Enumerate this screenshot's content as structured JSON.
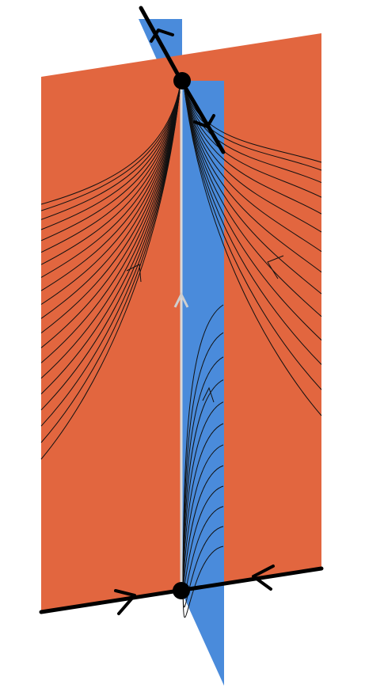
{
  "diagram": {
    "description_visible_text": [],
    "colors": {
      "orange_plane": "#E2663F",
      "blue_plane": "#4A8BDB",
      "flow_line": "#111111",
      "axis_line": "#d8d8d8",
      "axis_arrow": "#cfcfcf",
      "heavy_line": "#000000",
      "background": "#ffffff"
    },
    "equilibria": [
      {
        "name": "top-equilibrium",
        "kind": "stable"
      },
      {
        "name": "bottom-equilibrium",
        "kind": "saddle"
      }
    ],
    "families": {
      "left_orange_curve_count": 20,
      "right_orange_curve_count": 14,
      "blue_fan_curve_count": 12
    }
  }
}
